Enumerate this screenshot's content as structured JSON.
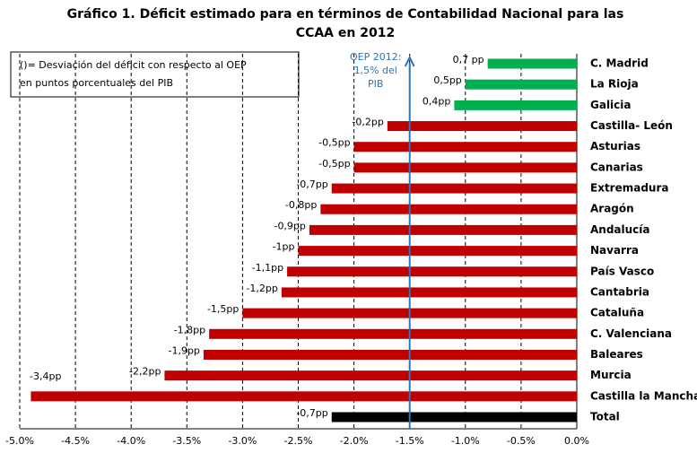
{
  "chart_data": {
    "type": "bar",
    "orientation": "horizontal",
    "title": "Gráfico 1. Déficit estimado para en términos de Contabilidad Nacional para las CCAA en 2012",
    "note": [
      "()= Desviación  del déficit con respecto al OEP",
      "en puntos porcentuales del PIB"
    ],
    "categories": [
      "C. Madrid",
      "La Rioja",
      "Galicia",
      "Castilla- León",
      "Asturias",
      "Canarias",
      "Extremadura",
      "Aragón",
      "Andalucía",
      "Navarra",
      "País Vasco",
      "Cantabria",
      "Cataluña",
      "C. Valenciana",
      "Baleares",
      "Murcia",
      "Castilla la Mancha",
      "Total"
    ],
    "values": [
      -0.8,
      -1.0,
      -1.1,
      -1.7,
      -2.0,
      -2.0,
      -2.2,
      -2.3,
      -2.4,
      -2.5,
      -2.6,
      -2.65,
      -3.0,
      -3.3,
      -3.35,
      -3.7,
      -4.9,
      -2.2
    ],
    "colors": [
      "#00b050",
      "#00b050",
      "#00b050",
      "#c00000",
      "#c00000",
      "#c00000",
      "#c00000",
      "#c00000",
      "#c00000",
      "#c00000",
      "#c00000",
      "#c00000",
      "#c00000",
      "#c00000",
      "#c00000",
      "#c00000",
      "#c00000",
      "#000000"
    ],
    "deviations": [
      "0,7 pp",
      "0,5pp",
      "0,4pp",
      "-0,2pp",
      "-0,5pp",
      "-0,5pp",
      "-0,7pp",
      "-0,8pp",
      "-0,9pp",
      "-1pp",
      "-1,1pp",
      "-1,2pp",
      "-1,5pp",
      "-1,8pp",
      "-1,9pp",
      "-2,2pp",
      "-3,4pp",
      "-0,7pp"
    ],
    "reference_line": {
      "value": -1.5,
      "label": [
        "OEP 2012:",
        "1,5% del",
        "PIB"
      ],
      "color": "#2e75b6"
    },
    "xlim": [
      -5.0,
      0.0
    ],
    "xticks": [
      {
        "value": -5.0,
        "label": "-5.0%"
      },
      {
        "value": -4.5,
        "label": "-4.5%"
      },
      {
        "value": -4.0,
        "label": "-4.0%"
      },
      {
        "value": -3.5,
        "label": "-3.5%"
      },
      {
        "value": -3.0,
        "label": "-3.0%"
      },
      {
        "value": -2.5,
        "label": "-2.5%"
      },
      {
        "value": -2.0,
        "label": "-2.0%"
      },
      {
        "value": -1.5,
        "label": "-1.5%"
      },
      {
        "value": -1.0,
        "label": "-1.0%"
      },
      {
        "value": -0.5,
        "label": "-0.5%"
      },
      {
        "value": 0.0,
        "label": "0.0%"
      }
    ],
    "grid": true
  }
}
